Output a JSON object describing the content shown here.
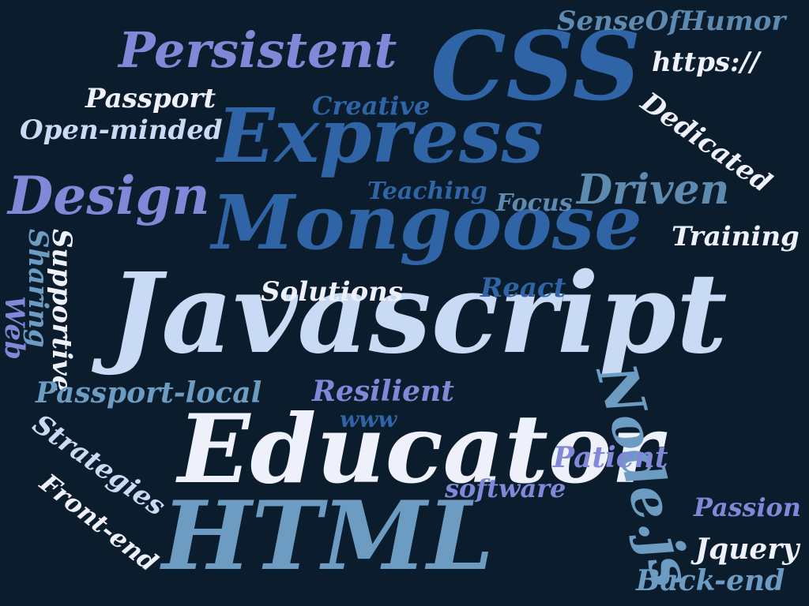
{
  "palette": {
    "background": "#0b1c2d",
    "light": "#c9dbf4",
    "white": "#eef1fa",
    "steel": "#6d9cc2",
    "blue": "#2f64a6",
    "lavender": "#8288d8",
    "teal": "#5f8ab0"
  },
  "words": [
    {
      "text": "Javascript",
      "color": "light"
    },
    {
      "text": "Educator",
      "color": "white"
    },
    {
      "text": "HTML",
      "color": "steel"
    },
    {
      "text": "Node.js",
      "color": "steel"
    },
    {
      "text": "Mongoose",
      "color": "blue"
    },
    {
      "text": "Express",
      "color": "blue"
    },
    {
      "text": "CSS",
      "color": "blue"
    },
    {
      "text": "Persistent",
      "color": "lavender"
    },
    {
      "text": "Design",
      "color": "lavender"
    },
    {
      "text": "Driven",
      "color": "teal"
    },
    {
      "text": "SenseOfHumor",
      "color": "teal"
    },
    {
      "text": "https://",
      "color": "white"
    },
    {
      "text": "Dedicated",
      "color": "white"
    },
    {
      "text": "Passport",
      "color": "white"
    },
    {
      "text": "Open-minded",
      "color": "light"
    },
    {
      "text": "Creative",
      "color": "blue"
    },
    {
      "text": "Teaching",
      "color": "blue"
    },
    {
      "text": "Focus",
      "color": "teal"
    },
    {
      "text": "Training",
      "color": "white"
    },
    {
      "text": "Solutions",
      "color": "white"
    },
    {
      "text": "React",
      "color": "blue"
    },
    {
      "text": "Supportive",
      "color": "white"
    },
    {
      "text": "Sharing",
      "color": "steel"
    },
    {
      "text": "Web",
      "color": "lavender"
    },
    {
      "text": "Passport-local",
      "color": "steel"
    },
    {
      "text": "Resilient",
      "color": "lavender"
    },
    {
      "text": "www",
      "color": "blue"
    },
    {
      "text": "Strategies",
      "color": "light"
    },
    {
      "text": "Patient",
      "color": "lavender"
    },
    {
      "text": "Front-end",
      "color": "white"
    },
    {
      "text": "software",
      "color": "lavender"
    },
    {
      "text": "Passion",
      "color": "lavender"
    },
    {
      "text": "Jquery",
      "color": "white"
    },
    {
      "text": "Back-end",
      "color": "steel"
    }
  ]
}
